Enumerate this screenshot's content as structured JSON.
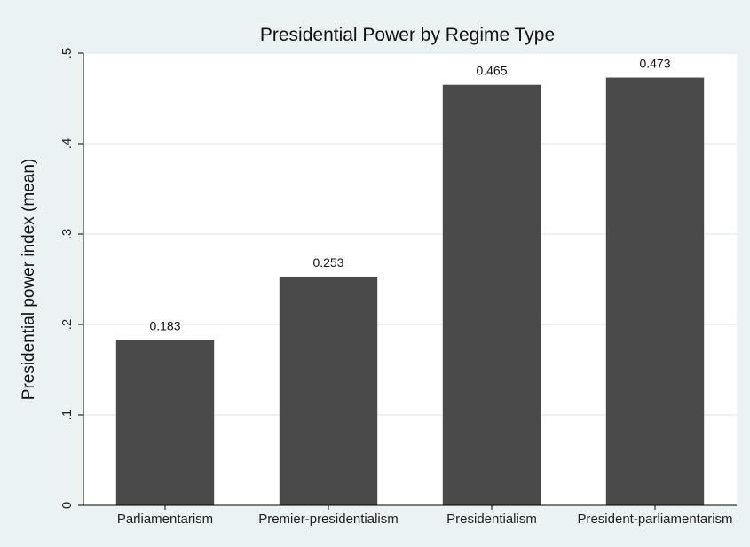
{
  "chart_data": {
    "type": "bar",
    "title": "Presidential Power by Regime Type",
    "xlabel": "",
    "ylabel": "Presidential power index (mean)",
    "categories": [
      "Parliamentarism",
      "Premier-presidentialism",
      "Presidentialism",
      "President-parliamentarism"
    ],
    "values": [
      0.183,
      0.253,
      0.465,
      0.473
    ],
    "value_labels": [
      "0.183",
      "0.253",
      "0.465",
      "0.473"
    ],
    "ylim": [
      0,
      0.5
    ],
    "yticks": [
      0,
      0.1,
      0.2,
      0.3,
      0.4,
      0.5
    ],
    "ytick_labels": [
      "0",
      ".1",
      ".2",
      ".3",
      ".4",
      ".5"
    ],
    "grid": true,
    "colors": {
      "bar": "#4a4a4a",
      "plot_background": "#ffffff",
      "outer_background": "#eaf2f3",
      "grid": "#dde6e8"
    }
  }
}
